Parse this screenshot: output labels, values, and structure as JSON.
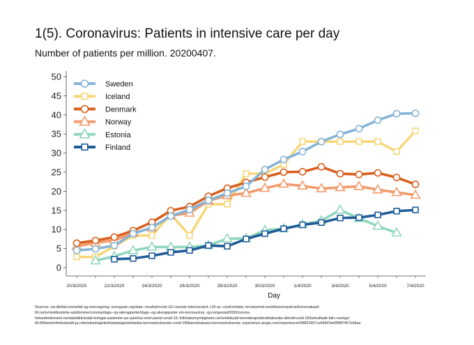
{
  "title": "1(5). Coronavirus: Patients in intensive care per day",
  "subtitle": "Number of patients per million. 20200407.",
  "sources": [
    "Sources: sst.dk/da/corona/tal-og-overvagning; icuregswe.org/data--resultat/covid-19-i-svensk-intensivvard; c19.se; covid.is/data;  terviseamet.ee/et/koroonaviirus/koroonakaart",
    "thl.no/sv/smittsomme-sykdommer/corona/dags--og-ukerapporter/dags--og-ukerapporter-om-koronavirus; vg.no/spesial/2020/corona",
    "helsedirektoratet.no/statistikk/antall-innlagte-pasienter-pa-sykehus-med-pavist-covid-19; folkhalsomyndigheten.se/smittskydd-beredskap/utbrott/aktuella-utbrott/covid-19/bekraftade-fall-i-sverige/",
    "thl.fi/fi/web/infektiotaudit-ja-rokotukset/ajankohtaista/ajankohtaista-koronaviruksesta-covid-19/tilannekatsaus-koronaviruksesta; experience.arcgis.com/experience/09f821667ce64bf7be6f9f87457ed9aa"
  ],
  "chart_data": {
    "type": "line",
    "xlabel": "Day",
    "ylabel": "",
    "x": [
      "20/3",
      "21/3",
      "22/3",
      "23/3",
      "24/3",
      "25/3",
      "26/3",
      "27/3",
      "28/3",
      "29/3",
      "30/3",
      "31/3",
      "1/4",
      "2/4",
      "3/4",
      "4/4",
      "5/4",
      "6/4",
      "7/4"
    ],
    "x_tick_labels": [
      "20/3/2020",
      "22/3/2020",
      "24/3/2020",
      "26/3/2020",
      "28/3/2020",
      "30/3/2020",
      "1/4/2020",
      "3/4/2020",
      "5/4/2020",
      "7/4/2020"
    ],
    "x_tick_index": [
      0,
      2,
      4,
      6,
      8,
      10,
      12,
      14,
      16,
      18
    ],
    "ylim": [
      0,
      50
    ],
    "yticks": [
      0,
      5,
      10,
      15,
      20,
      25,
      30,
      35,
      40,
      45,
      50
    ],
    "legend_position": "top-left",
    "series": [
      {
        "name": "Sweden",
        "color": "#86b4d6",
        "marker": "circle",
        "values": [
          4.5,
          4.9,
          5.8,
          8.9,
          10.5,
          13.5,
          15.2,
          17.6,
          19.5,
          21.3,
          25.7,
          28.3,
          30.4,
          33.0,
          34.9,
          36.4,
          38.6,
          40.3,
          40.4
        ]
      },
      {
        "name": "Iceland",
        "color": "#f7d77a",
        "marker": "square",
        "values": [
          2.8,
          2.8,
          5.6,
          8.4,
          8.4,
          14.0,
          8.4,
          16.6,
          16.6,
          24.6,
          24.6,
          27.0,
          33.0,
          33.0,
          33.0,
          33.0,
          33.0,
          30.4,
          35.8
        ]
      },
      {
        "name": "Denmark",
        "color": "#d95f1e",
        "marker": "circle",
        "values": [
          6.4,
          7.1,
          8.0,
          9.7,
          11.9,
          14.9,
          16.0,
          18.7,
          20.8,
          22.3,
          23.7,
          25.0,
          25.1,
          26.4,
          24.6,
          24.4,
          24.8,
          23.6,
          21.8
        ]
      },
      {
        "name": "Norway",
        "color": "#f29b6b",
        "marker": "triangle",
        "values": [
          5.6,
          6.5,
          7.2,
          9.0,
          10.4,
          13.6,
          14.3,
          17.5,
          18.9,
          19.5,
          20.8,
          21.9,
          21.4,
          20.7,
          21.0,
          21.3,
          20.4,
          19.7,
          19.0
        ]
      },
      {
        "name": "Estonia",
        "color": "#8fd6bf",
        "marker": "triangle",
        "values": [
          null,
          1.8,
          3.0,
          4.5,
          5.4,
          5.4,
          5.4,
          5.8,
          7.6,
          7.6,
          9.8,
          10.2,
          11.3,
          12.3,
          15.1,
          12.9,
          10.9,
          9.1,
          null
        ]
      },
      {
        "name": "Finland",
        "color": "#1f5c99",
        "marker": "square",
        "values": [
          null,
          null,
          2.2,
          2.4,
          3.1,
          4.0,
          4.5,
          5.8,
          5.6,
          7.5,
          8.9,
          10.2,
          11.2,
          11.8,
          13.0,
          13.1,
          13.8,
          14.8,
          15.1
        ]
      }
    ]
  }
}
